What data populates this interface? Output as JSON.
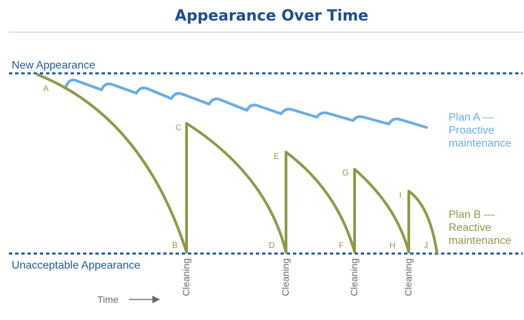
{
  "title": "Appearance Over Time",
  "colors": {
    "title": "#1f4e8c",
    "level_lines": "#1f5aa0",
    "plan_a": "#6aaee3",
    "plan_b": "#8e9a4a",
    "rule": "#cfcfcf",
    "annotation": "#6b6b6b"
  },
  "levels": {
    "top": "New Appearance",
    "bottom": "Unacceptable Appearance"
  },
  "plan_a": {
    "line1": "Plan A —",
    "line2": "Proactive",
    "line3": "maintenance"
  },
  "plan_b": {
    "line1": "Plan B —",
    "line2": "Reactive",
    "line3": "maintenance"
  },
  "points": [
    "A",
    "B",
    "C",
    "D",
    "E",
    "F",
    "G",
    "H",
    "I",
    "J"
  ],
  "cleanings": [
    "Cleaning",
    "Cleaning",
    "Cleaning",
    "Cleaning"
  ],
  "time_label": "Time"
}
